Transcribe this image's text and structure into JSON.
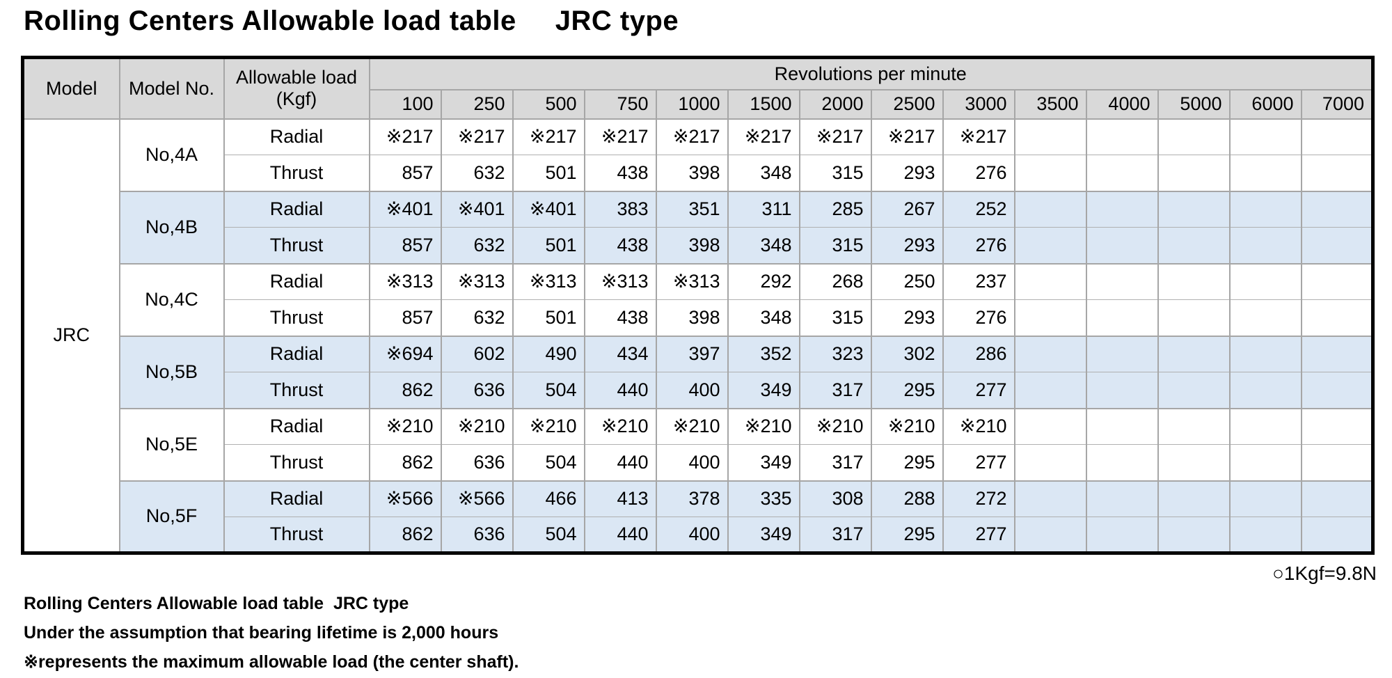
{
  "title": {
    "main": "Rolling Centers Allowable load table",
    "sub": "JRC type"
  },
  "colors": {
    "header_bg": "#d9d9d9",
    "band_blue": "#dbe7f4",
    "grid_line": "#a6a6a6",
    "outer_border": "#000000"
  },
  "table": {
    "header": {
      "model": "Model",
      "model_no": "Model No.",
      "allowable_load_line1": "Allowable load",
      "allowable_load_line2": "(Kgf)",
      "rpm_title": "Revolutions per minute",
      "rpm": [
        "100",
        "250",
        "500",
        "750",
        "1000",
        "1500",
        "2000",
        "2500",
        "3000",
        "3500",
        "4000",
        "5000",
        "6000",
        "7000"
      ]
    },
    "model": "JRC",
    "groups": [
      {
        "model_no": "No,4A",
        "rows": [
          {
            "load_type": "Radial",
            "values": [
              "※217",
              "※217",
              "※217",
              "※217",
              "※217",
              "※217",
              "※217",
              "※217",
              "※217",
              "",
              "",
              "",
              "",
              ""
            ]
          },
          {
            "load_type": "Thrust",
            "values": [
              "857",
              "632",
              "501",
              "438",
              "398",
              "348",
              "315",
              "293",
              "276",
              "",
              "",
              "",
              "",
              ""
            ]
          }
        ]
      },
      {
        "model_no": "No,4B",
        "rows": [
          {
            "load_type": "Radial",
            "values": [
              "※401",
              "※401",
              "※401",
              "383",
              "351",
              "311",
              "285",
              "267",
              "252",
              "",
              "",
              "",
              "",
              ""
            ]
          },
          {
            "load_type": "Thrust",
            "values": [
              "857",
              "632",
              "501",
              "438",
              "398",
              "348",
              "315",
              "293",
              "276",
              "",
              "",
              "",
              "",
              ""
            ]
          }
        ]
      },
      {
        "model_no": "No,4C",
        "rows": [
          {
            "load_type": "Radial",
            "values": [
              "※313",
              "※313",
              "※313",
              "※313",
              "※313",
              "292",
              "268",
              "250",
              "237",
              "",
              "",
              "",
              "",
              ""
            ]
          },
          {
            "load_type": "Thrust",
            "values": [
              "857",
              "632",
              "501",
              "438",
              "398",
              "348",
              "315",
              "293",
              "276",
              "",
              "",
              "",
              "",
              ""
            ]
          }
        ]
      },
      {
        "model_no": "No,5B",
        "rows": [
          {
            "load_type": "Radial",
            "values": [
              "※694",
              "602",
              "490",
              "434",
              "397",
              "352",
              "323",
              "302",
              "286",
              "",
              "",
              "",
              "",
              ""
            ]
          },
          {
            "load_type": "Thrust",
            "values": [
              "862",
              "636",
              "504",
              "440",
              "400",
              "349",
              "317",
              "295",
              "277",
              "",
              "",
              "",
              "",
              ""
            ]
          }
        ]
      },
      {
        "model_no": "No,5E",
        "rows": [
          {
            "load_type": "Radial",
            "values": [
              "※210",
              "※210",
              "※210",
              "※210",
              "※210",
              "※210",
              "※210",
              "※210",
              "※210",
              "",
              "",
              "",
              "",
              ""
            ]
          },
          {
            "load_type": "Thrust",
            "values": [
              "862",
              "636",
              "504",
              "440",
              "400",
              "349",
              "317",
              "295",
              "277",
              "",
              "",
              "",
              "",
              ""
            ]
          }
        ]
      },
      {
        "model_no": "No,5F",
        "rows": [
          {
            "load_type": "Radial",
            "values": [
              "※566",
              "※566",
              "466",
              "413",
              "378",
              "335",
              "308",
              "288",
              "272",
              "",
              "",
              "",
              "",
              ""
            ]
          },
          {
            "load_type": "Thrust",
            "values": [
              "862",
              "636",
              "504",
              "440",
              "400",
              "349",
              "317",
              "295",
              "277",
              "",
              "",
              "",
              "",
              ""
            ]
          }
        ]
      }
    ]
  },
  "notes": {
    "unit": "○1Kgf=9.8N",
    "line1": "Rolling Centers Allowable load table  JRC type",
    "line2": "Under the assumption that bearing lifetime is 2,000 hours",
    "line3": "※represents the maximum allowable load (the center shaft)."
  }
}
